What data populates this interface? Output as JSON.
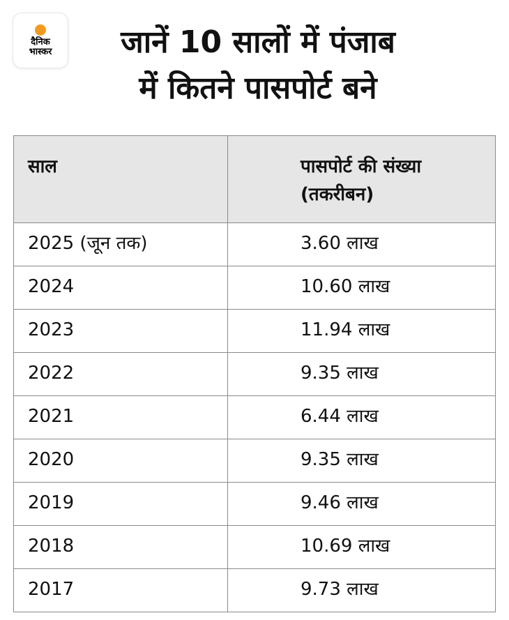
{
  "logo": {
    "line1": "दैनिक",
    "line2": "भास्कर",
    "accent_color": "#f39a1e"
  },
  "title": {
    "line1": "जानें 10 सालों में पंजाब",
    "line2": "में कितने पासपोर्ट बने"
  },
  "table": {
    "headers": {
      "year": "साल",
      "count_line1": "पासपोर्ट की संख्या",
      "count_line2": "(तकरीबन)"
    },
    "rows": [
      {
        "year": "2025 (जून तक)",
        "count": "3.60 लाख"
      },
      {
        "year": "2024",
        "count": "10.60 लाख"
      },
      {
        "year": "2023",
        "count": "11.94 लाख"
      },
      {
        "year": "2022",
        "count": "9.35 लाख"
      },
      {
        "year": "2021",
        "count": "6.44 लाख"
      },
      {
        "year": "2020",
        "count": "9.35 लाख"
      },
      {
        "year": "2019",
        "count": "9.46 लाख"
      },
      {
        "year": "2018",
        "count": "10.69 लाख"
      },
      {
        "year": "2017",
        "count": "9.73 लाख"
      }
    ]
  }
}
